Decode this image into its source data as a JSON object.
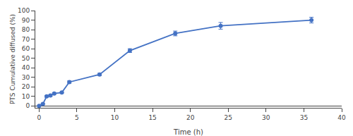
{
  "chart_data": {
    "type": "line",
    "x": [
      0,
      0.5,
      1,
      1.5,
      2,
      3,
      4,
      8,
      12,
      18,
      24,
      36
    ],
    "values": [
      0,
      2,
      10,
      11,
      13,
      14,
      25,
      33,
      58,
      76,
      84,
      90
    ],
    "yerr": [
      0.2,
      0.4,
      0.8,
      0.8,
      0.8,
      0.6,
      1.2,
      1.2,
      2.0,
      2.5,
      3.5,
      3.0
    ],
    "color": "#4472C4",
    "marker": "circle",
    "xlabel": "Time (h)",
    "ylabel": "PTS Cumulative diffused (%)",
    "xlim": [
      -0.5,
      40
    ],
    "ylim": [
      -2,
      100
    ],
    "xticks": [
      0,
      5,
      10,
      15,
      20,
      25,
      30,
      35,
      40
    ],
    "yticks": [
      0,
      10,
      20,
      30,
      40,
      50,
      60,
      70,
      80,
      90,
      100
    ],
    "grid": false
  }
}
